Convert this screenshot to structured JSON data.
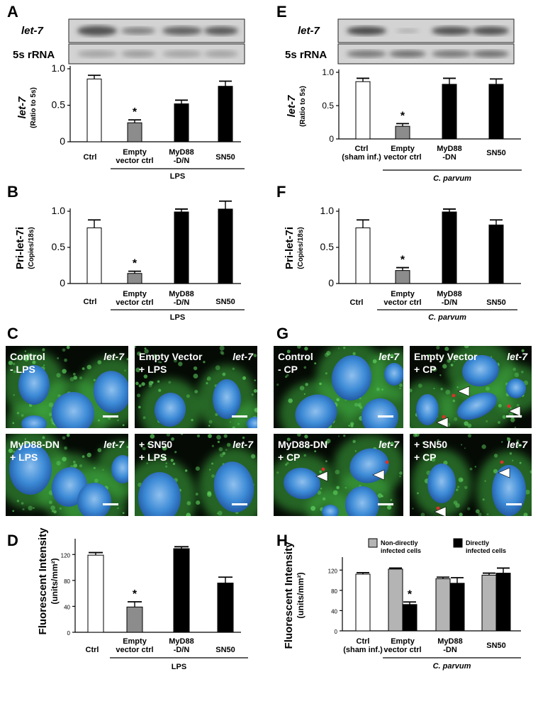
{
  "panels": {
    "A": {
      "letter": "A",
      "blot_labels": [
        "let-7",
        "5s rRNA"
      ],
      "ylabel_main": "let-7",
      "ylabel_sub": "(Ratio to 5s)",
      "yticks": [
        "1.0",
        "0.5",
        "0"
      ],
      "categories": [
        "Ctrl",
        "Empty vector ctrl",
        "MyD88 -D/N",
        "SN50"
      ],
      "group_label": "LPS",
      "sig": "*"
    },
    "B": {
      "letter": "B",
      "ylabel_main": "Pri-let-7i",
      "ylabel_sub": "(Copies/18s)",
      "yticks": [
        "1.0",
        "0.5",
        "0"
      ],
      "categories": [
        "Ctrl",
        "Empty vector ctrl",
        "MyD88 -D/N",
        "SN50"
      ],
      "group_label": "LPS",
      "sig": "*"
    },
    "C": {
      "letter": "C",
      "images": [
        {
          "label1": "Control",
          "label2": "- LPS",
          "tag": "let-7"
        },
        {
          "label1": "Empty Vector",
          "label2": "+ LPS",
          "tag": "let-7"
        },
        {
          "label1": "MyD88-DN",
          "label2": "+ LPS",
          "tag": "let-7"
        },
        {
          "label1": "+ SN50",
          "label2": "+ LPS",
          "tag": "let-7"
        }
      ]
    },
    "D": {
      "letter": "D",
      "ylabel_main": "Fluorescent Intensity",
      "ylabel_sub": "(units/mm²)",
      "yticks": [
        "120",
        "80",
        "40",
        "0"
      ],
      "categories": [
        "Ctrl",
        "Empty vector ctrl",
        "MyD88 -D/N",
        "SN50"
      ],
      "group_label": "LPS",
      "sig": "*"
    },
    "E": {
      "letter": "E",
      "blot_labels": [
        "let-7",
        "5s rRNA"
      ],
      "ylabel_main": "let-7",
      "ylabel_sub": "(Ratio to 5s)",
      "yticks": [
        "1.0",
        "0.5",
        "0"
      ],
      "categories": [
        "Ctrl (sham inf.)",
        "Empty vector ctrl",
        "MyD88 -DN",
        "SN50"
      ],
      "group_label": "C. parvum",
      "sig": "*"
    },
    "F": {
      "letter": "F",
      "ylabel_main": "Pri-let-7i",
      "ylabel_sub": "(Copies/18s)",
      "yticks": [
        "1.0",
        "0.5",
        "0"
      ],
      "categories": [
        "Ctrl",
        "Empty vector ctrl",
        "MyD88 -D/N",
        "SN50"
      ],
      "group_label": "C. parvum",
      "sig": "*"
    },
    "G": {
      "letter": "G",
      "images": [
        {
          "label1": "Control",
          "label2": "- CP",
          "tag": "let-7"
        },
        {
          "label1": "Empty Vector",
          "label2": "+ CP",
          "tag": "let-7"
        },
        {
          "label1": "MyD88-DN",
          "label2": "+ CP",
          "tag": "let-7"
        },
        {
          "label1": "+ SN50",
          "label2": "+ CP",
          "tag": "let-7"
        }
      ]
    },
    "H": {
      "letter": "H",
      "ylabel_main": "Fluorescent Intensity",
      "ylabel_sub": "(units/mm²)",
      "yticks": [
        "120",
        "80",
        "40",
        "0"
      ],
      "categories": [
        "Ctrl (sham inf.)",
        "Empty vector ctrl",
        "MyD88 -DN",
        "SN50"
      ],
      "group_label": "C. parvum",
      "legend": [
        "Non-directly infected cells",
        "Directly infected cells"
      ],
      "sig": "*"
    }
  },
  "chart_data": [
    {
      "panel": "A",
      "type": "bar",
      "categories": [
        "Ctrl",
        "Empty vector ctrl",
        "MyD88 -D/N",
        "SN50"
      ],
      "values": [
        0.86,
        0.26,
        0.52,
        0.76
      ],
      "errors": [
        0.05,
        0.04,
        0.05,
        0.07
      ],
      "colors": [
        "#ffffff",
        "#8c8c8c",
        "#000000",
        "#000000"
      ],
      "ylabel": "let-7 (Ratio to 5s)",
      "ylim": [
        0,
        1.0
      ]
    },
    {
      "panel": "B",
      "type": "bar",
      "categories": [
        "Ctrl",
        "Empty vector ctrl",
        "MyD88 -D/N",
        "SN50"
      ],
      "values": [
        0.77,
        0.14,
        0.99,
        1.03
      ],
      "errors": [
        0.11,
        0.03,
        0.04,
        0.11
      ],
      "colors": [
        "#ffffff",
        "#8c8c8c",
        "#000000",
        "#000000"
      ],
      "ylabel": "Pri-let-7i (Copies/18s)",
      "ylim": [
        0,
        1.0
      ]
    },
    {
      "panel": "D",
      "type": "bar",
      "categories": [
        "Ctrl",
        "Empty vector ctrl",
        "MyD88 -D/N",
        "SN50"
      ],
      "values": [
        119,
        39,
        129,
        76
      ],
      "errors": [
        4,
        8,
        3,
        9
      ],
      "colors": [
        "#ffffff",
        "#8c8c8c",
        "#000000",
        "#000000"
      ],
      "ylabel": "Fluorescent Intensity (units/mm²)",
      "ylim": [
        0,
        140
      ]
    },
    {
      "panel": "E",
      "type": "bar",
      "categories": [
        "Ctrl (sham inf.)",
        "Empty vector ctrl",
        "MyD88 -DN",
        "SN50"
      ],
      "values": [
        0.86,
        0.19,
        0.82,
        0.82
      ],
      "errors": [
        0.05,
        0.04,
        0.09,
        0.08
      ],
      "colors": [
        "#ffffff",
        "#8c8c8c",
        "#000000",
        "#000000"
      ],
      "ylabel": "let-7 (Ratio to 5s)",
      "ylim": [
        0,
        1.0
      ]
    },
    {
      "panel": "F",
      "type": "bar",
      "categories": [
        "Ctrl",
        "Empty vector ctrl",
        "MyD88 -D/N",
        "SN50"
      ],
      "values": [
        0.77,
        0.18,
        0.99,
        0.81
      ],
      "errors": [
        0.11,
        0.04,
        0.04,
        0.07
      ],
      "colors": [
        "#ffffff",
        "#8c8c8c",
        "#000000",
        "#000000"
      ],
      "ylabel": "Pri-let-7i (Copies/18s)",
      "ylim": [
        0,
        1.0
      ]
    },
    {
      "panel": "H",
      "type": "bar",
      "categories": [
        "Ctrl (sham inf.)",
        "Empty vector ctrl",
        "MyD88 -DN",
        "SN50"
      ],
      "series": [
        {
          "name": "Non-directly infected cells",
          "values": [
            112,
            122,
            103,
            110
          ],
          "errors": [
            3,
            2,
            3,
            4
          ],
          "color": "#b4b4b4"
        },
        {
          "name": "Directly infected cells",
          "values": [
            null,
            52,
            94,
            114
          ],
          "errors": [
            null,
            5,
            11,
            10
          ],
          "color": "#000000"
        }
      ],
      "ctrl_color": "#ffffff",
      "ylabel": "Fluorescent Intensity (units/mm²)",
      "ylim": [
        0,
        140
      ]
    }
  ],
  "micro_colors": {
    "background": "#050a05",
    "membrane": "#3fae3f",
    "nucleus": "#3c8ad6",
    "puncta": "#e0302a"
  }
}
